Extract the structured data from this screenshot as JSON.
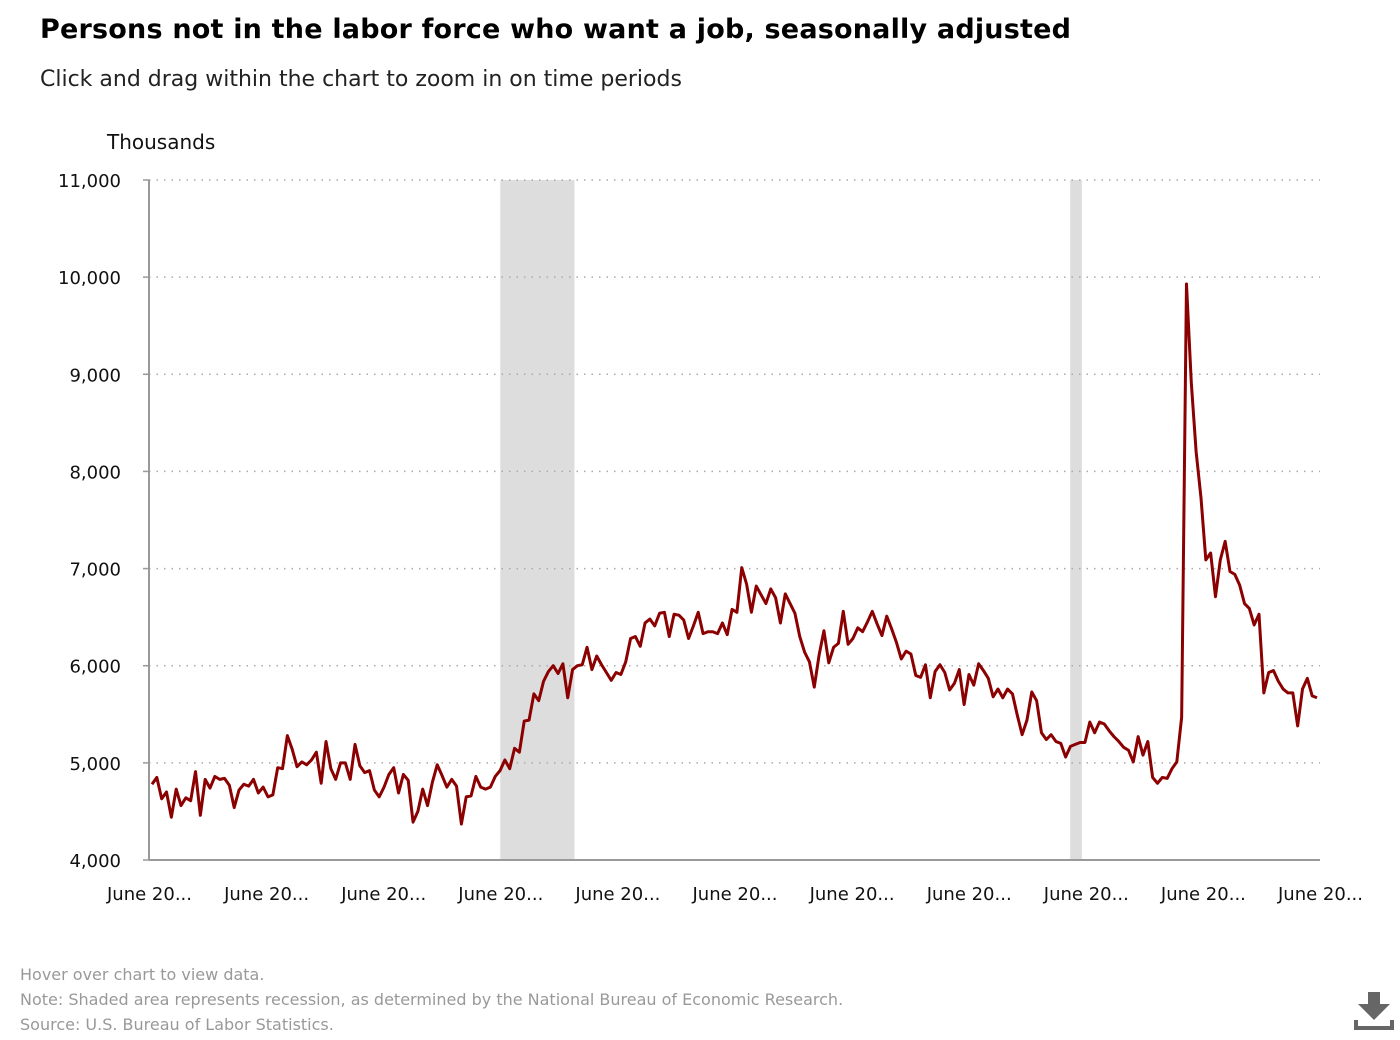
{
  "title": "Persons not in the labor force who want a job, seasonally adjusted",
  "subtitle": "Click and drag within the chart to zoom in on time periods",
  "footer": {
    "hover_hint": "Hover over chart to view data.",
    "note": "Note: Shaded area represents recession, as determined by the National Bureau of Economic Research.",
    "source": "Source: U.S. Bureau of Labor Statistics."
  },
  "download_icon": "download-icon",
  "colors": {
    "line": "#8b0000",
    "recession": "#dddddd",
    "grid": "#aaaaaa",
    "axis": "#999999"
  },
  "chart_data": {
    "type": "line",
    "title": "Persons not in the labor force who want a job, seasonally adjusted",
    "subtitle": "Click and drag within the chart to zoom in on time periods",
    "ylabel": "Thousands",
    "xlabel": "",
    "ylim": [
      4000,
      11000
    ],
    "yticks": [
      4000,
      5000,
      6000,
      7000,
      8000,
      9000,
      10000,
      11000
    ],
    "ytick_labels": [
      "4,000",
      "5,000",
      "6,000",
      "7,000",
      "8,000",
      "9,000",
      "10,000",
      "11,000"
    ],
    "x_start": "2000-06",
    "x_end": "2025-06",
    "xticks": [
      "2000-06",
      "2002-12",
      "2005-06",
      "2007-12",
      "2010-06",
      "2012-12",
      "2015-06",
      "2017-12",
      "2020-06",
      "2022-12",
      "2025-06"
    ],
    "xtick_labels": [
      "June 20...",
      "June 20...",
      "June 20...",
      "June 20...",
      "June 20...",
      "June 20...",
      "June 20...",
      "June 20...",
      "June 20...",
      "June 20...",
      "June 20..."
    ],
    "grid": true,
    "recessions": [
      [
        "2007-12",
        "2009-06"
      ],
      [
        "2020-02",
        "2020-04"
      ]
    ],
    "series": [
      {
        "values": [
          4780,
          4850,
          4630,
          4700,
          4440,
          4730,
          4560,
          4640,
          4610,
          4910,
          4460,
          4830,
          4740,
          4860,
          4830,
          4840,
          4770,
          4540,
          4720,
          4780,
          4760,
          4830,
          4690,
          4750,
          4650,
          4670,
          4950,
          4940,
          5280,
          5140,
          4960,
          5010,
          4980,
          5030,
          5110,
          4790,
          5220,
          4940,
          4830,
          5000,
          5000,
          4830,
          5190,
          4970,
          4900,
          4920,
          4720,
          4650,
          4750,
          4880,
          4950,
          4690,
          4880,
          4820,
          4390,
          4500,
          4730,
          4560,
          4800,
          4980,
          4870,
          4750,
          4830,
          4760,
          4370,
          4650,
          4660,
          4860,
          4750,
          4730,
          4750,
          4860,
          4920,
          5030,
          4940,
          5150,
          5110,
          5430,
          5440,
          5710,
          5640,
          5840,
          5940,
          6000,
          5920,
          6020,
          5670,
          5960,
          6000,
          6010,
          6190,
          5960,
          6100,
          6010,
          5930,
          5850,
          5930,
          5910,
          6040,
          6280,
          6300,
          6200,
          6440,
          6480,
          6410,
          6540,
          6550,
          6300,
          6530,
          6520,
          6470,
          6280,
          6410,
          6550,
          6330,
          6350,
          6350,
          6330,
          6440,
          6320,
          6580,
          6550,
          7010,
          6840,
          6550,
          6820,
          6730,
          6640,
          6790,
          6700,
          6440,
          6740,
          6640,
          6540,
          6300,
          6140,
          6040,
          5780,
          6110,
          6360,
          6030,
          6190,
          6230,
          6560,
          6220,
          6280,
          6390,
          6350,
          6450,
          6560,
          6430,
          6310,
          6510,
          6380,
          6240,
          6070,
          6150,
          6120,
          5900,
          5880,
          6010,
          5670,
          5940,
          6010,
          5930,
          5750,
          5820,
          5960,
          5600,
          5910,
          5800,
          6020,
          5950,
          5870,
          5680,
          5760,
          5670,
          5760,
          5710,
          5490,
          5290,
          5440,
          5730,
          5640,
          5310,
          5240,
          5290,
          5220,
          5200,
          5060,
          5170,
          5190,
          5210,
          5210,
          5420,
          5310,
          5420,
          5400,
          5330,
          5270,
          5220,
          5160,
          5130,
          5010,
          5270,
          5080,
          5220,
          4850,
          4790,
          4850,
          4840,
          4940,
          5010,
          5470,
          9930,
          8910,
          8200,
          7730,
          7090,
          7160,
          6710,
          7090,
          7280,
          6970,
          6940,
          6830,
          6640,
          6590,
          6420,
          6530,
          5720,
          5930,
          5950,
          5840,
          5760,
          5720,
          5720,
          5380,
          5760,
          5870,
          5690,
          5670
        ]
      }
    ]
  }
}
